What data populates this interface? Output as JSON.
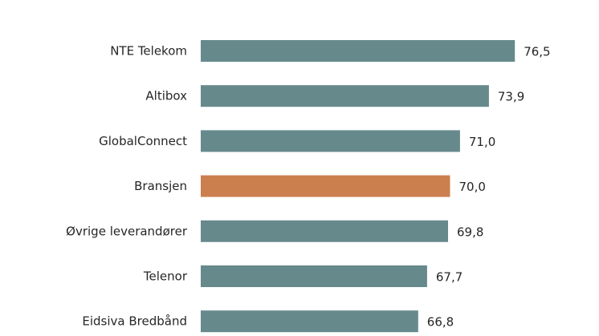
{
  "chart_data": {
    "type": "bar",
    "orientation": "horizontal",
    "categories": [
      "NTE Telekom",
      "Altibox",
      "GlobalConnect",
      "Bransjen",
      "Øvrige leverandører",
      "Telenor",
      "Eidsiva Bredbånd"
    ],
    "values": [
      76.5,
      73.9,
      71.0,
      70.0,
      69.8,
      67.7,
      66.8
    ],
    "value_labels": [
      "76,5",
      "73,9",
      "71,0",
      "70,0",
      "69,8",
      "67,7",
      "66,8"
    ],
    "xlim": [
      45,
      76.5
    ],
    "grid": false,
    "legend": "none",
    "colors": {
      "default": "#66898c",
      "highlight": "#cc7f4e",
      "highlight_category": "Bransjen"
    }
  }
}
